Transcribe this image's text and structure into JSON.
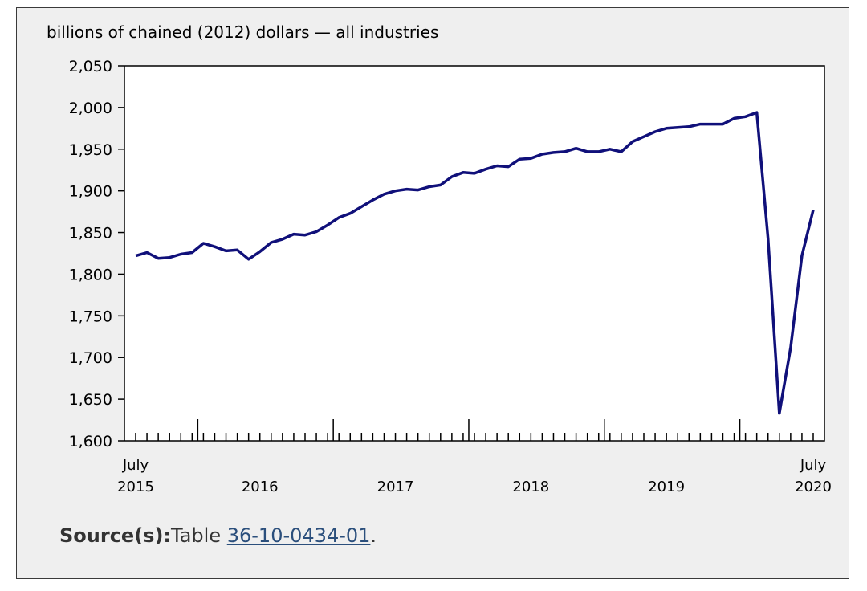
{
  "chart_data": {
    "type": "line",
    "ylabel": "billions of chained (2012) dollars — all industries",
    "ylim": [
      1600,
      2050
    ],
    "y_ticks": [
      1600,
      1650,
      1700,
      1750,
      1800,
      1850,
      1900,
      1950,
      2000,
      2050
    ],
    "y_tick_labels": [
      "1,600",
      "1,650",
      "1,700",
      "1,750",
      "1,800",
      "1,850",
      "1,900",
      "1,950",
      "2,000",
      "2,050"
    ],
    "x_start": "2015-07",
    "x_end": "2020-07",
    "x_tick_labels": [
      {
        "month": "2015-07",
        "line1": "July",
        "line2": "2015"
      },
      {
        "month": "2016-06",
        "line1": "",
        "line2": "2016"
      },
      {
        "month": "2017-06",
        "line1": "",
        "line2": "2017"
      },
      {
        "month": "2018-06",
        "line1": "",
        "line2": "2018"
      },
      {
        "month": "2019-06",
        "line1": "",
        "line2": "2019"
      },
      {
        "month": "2020-07",
        "line1": "July",
        "line2": "2020"
      }
    ],
    "series": [
      {
        "color": "#10107a",
        "x": [
          "2015-07",
          "2015-08",
          "2015-09",
          "2015-10",
          "2015-11",
          "2015-12",
          "2016-01",
          "2016-02",
          "2016-03",
          "2016-04",
          "2016-05",
          "2016-06",
          "2016-07",
          "2016-08",
          "2016-09",
          "2016-10",
          "2016-11",
          "2016-12",
          "2017-01",
          "2017-02",
          "2017-03",
          "2017-04",
          "2017-05",
          "2017-06",
          "2017-07",
          "2017-08",
          "2017-09",
          "2017-10",
          "2017-11",
          "2017-12",
          "2018-01",
          "2018-02",
          "2018-03",
          "2018-04",
          "2018-05",
          "2018-06",
          "2018-07",
          "2018-08",
          "2018-09",
          "2018-10",
          "2018-11",
          "2018-12",
          "2019-01",
          "2019-02",
          "2019-03",
          "2019-04",
          "2019-05",
          "2019-06",
          "2019-07",
          "2019-08",
          "2019-09",
          "2019-10",
          "2019-11",
          "2019-12",
          "2020-01",
          "2020-02",
          "2020-03",
          "2020-04",
          "2020-05",
          "2020-06",
          "2020-07"
        ],
        "values": [
          1822,
          1826,
          1819,
          1820,
          1824,
          1826,
          1837,
          1833,
          1828,
          1829,
          1818,
          1827,
          1838,
          1842,
          1848,
          1847,
          1851,
          1859,
          1868,
          1873,
          1881,
          1889,
          1896,
          1900,
          1902,
          1901,
          1905,
          1907,
          1917,
          1922,
          1921,
          1926,
          1930,
          1929,
          1938,
          1939,
          1944,
          1946,
          1947,
          1951,
          1947,
          1947,
          1950,
          1947,
          1959,
          1965,
          1971,
          1975,
          1976,
          1977,
          1980,
          1980,
          1980,
          1987,
          1989,
          1994,
          1843,
          1633,
          1712,
          1822,
          1877
        ]
      }
    ]
  },
  "source": {
    "label": "Source(s):",
    "prefix": "Table ",
    "link_text": "36-10-0434-01",
    "suffix": "."
  }
}
